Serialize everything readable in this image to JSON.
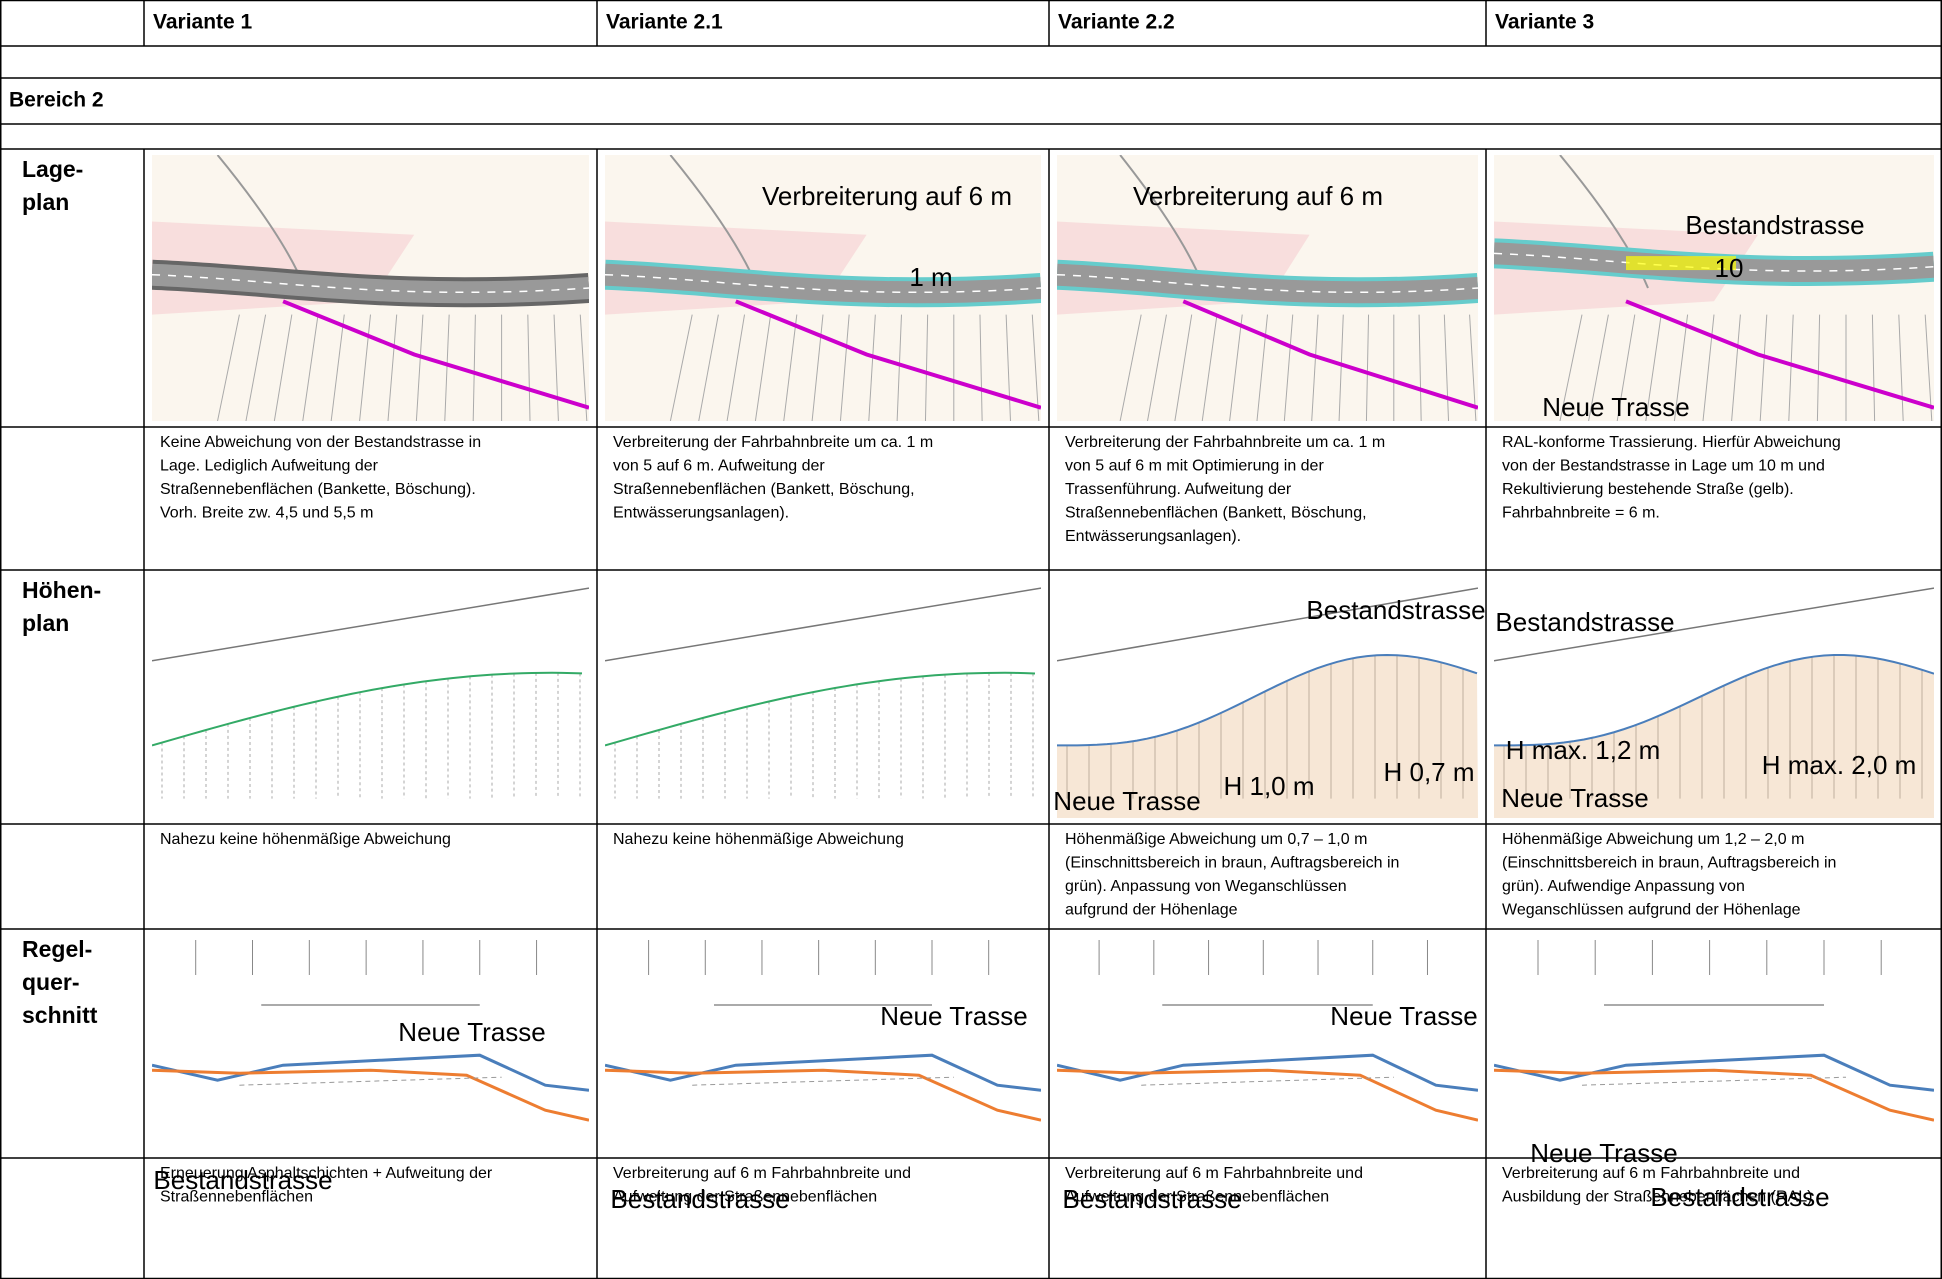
{
  "header": [
    "Variante 1",
    "Variante 2.1",
    "Variante 2.2",
    "Variante 3"
  ],
  "section": "Bereich 2",
  "rows": [
    {
      "label": [
        "Lage-",
        "plan"
      ],
      "annotations": [
        [],
        [
          {
            "text": "Verbreiterung auf 6 m",
            "color": "#4a7ebb"
          },
          {
            "text": "1 m",
            "color": "#e00000"
          }
        ],
        [
          {
            "text": "Verbreiterung auf 6 m",
            "color": "#4a7ebb"
          }
        ],
        [
          {
            "text": "Bestandstrasse",
            "color": "#ed7d31"
          },
          {
            "text": "10",
            "color": "#e00000"
          },
          {
            "text": "Neue Trasse",
            "color": "#4a7ebb"
          }
        ]
      ],
      "descriptions": [
        [
          "Keine Abweichung von der Bestandstrasse in",
          "Lage. Lediglich Aufweitung der",
          "Straßennebenflächen (Bankette, Böschung).",
          "Vorh. Breite zw. 4,5 und 5,5 m"
        ],
        [
          "Verbreiterung der Fahrbahnbreite um ca. 1 m",
          "von 5 auf 6 m.  Aufweitung der",
          "Straßennebenflächen (Bankett, Böschung,",
          "Entwässerungsanlagen)."
        ],
        [
          "Verbreiterung der Fahrbahnbreite um ca. 1 m",
          "von 5 auf 6 m  mit Optimierung in der",
          "Trassenführung. Aufweitung der",
          "Straßennebenflächen (Bankett, Böschung,",
          "Entwässerungsanlagen)."
        ],
        [
          "RAL-konforme Trassierung. Hierfür Abweichung",
          "von der Bestandstrasse in Lage um 10 m und",
          "Rekultivierung bestehende Straße (gelb).",
          "Fahrbahnbreite = 6 m."
        ]
      ]
    },
    {
      "label": [
        "Höhen-",
        "plan"
      ],
      "annotations": [
        [],
        [],
        [
          {
            "text": "Bestandstrasse",
            "color": "#ed7d31"
          },
          {
            "text": "H 1,0 m",
            "color": "#e00000"
          },
          {
            "text": "H 0,7 m",
            "color": "#e00000"
          },
          {
            "text": "Neue Trasse",
            "color": "#4a7ebb"
          }
        ],
        [
          {
            "text": "Bestandstrasse",
            "color": "#ed7d31"
          },
          {
            "text": "H max. 1,2 m",
            "color": "#e00000"
          },
          {
            "text": "H max. 2,0 m",
            "color": "#e00000"
          },
          {
            "text": "Neue Trasse",
            "color": "#4a7ebb"
          }
        ]
      ],
      "descriptions": [
        [
          "Nahezu keine höhenmäßige Abweichung"
        ],
        [
          "Nahezu keine höhenmäßige Abweichung"
        ],
        [
          "Höhenmäßige Abweichung um 0,7 – 1,0 m",
          "(Einschnittsbereich in braun, Auftragsbereich in",
          "grün). Anpassung von Weganschlüssen",
          "aufgrund der Höhenlage"
        ],
        [
          "Höhenmäßige Abweichung um 1,2 – 2,0 m",
          "(Einschnittsbereich in braun, Auftragsbereich in",
          "grün). Aufwendige Anpassung von",
          "Weganschlüssen aufgrund der Höhenlage"
        ]
      ]
    },
    {
      "label": [
        "Regel-",
        "quer-",
        "schnitt"
      ],
      "annotations": [
        [
          {
            "text": "Neue Trasse",
            "color": "#4a7ebb"
          },
          {
            "text": "Bestandstrasse",
            "color": "#ed7d31"
          }
        ],
        [
          {
            "text": "Neue Trasse",
            "color": "#4a7ebb"
          },
          {
            "text": "Bestandstrasse",
            "color": "#ed7d31"
          }
        ],
        [
          {
            "text": "Neue Trasse",
            "color": "#4a7ebb"
          },
          {
            "text": "Bestandstrasse",
            "color": "#ed7d31"
          }
        ],
        [
          {
            "text": "Neue Trasse",
            "color": "#4a7ebb"
          },
          {
            "text": "Bestandstrasse",
            "color": "#ed7d31"
          }
        ]
      ],
      "descriptions": [
        [
          "Erneuerung Asphaltschichten + Aufweitung der",
          "Straßennebenflächen"
        ],
        [
          "Verbreiterung auf 6 m Fahrbahnbreite und",
          "Aufweitung der Straßennebenflächen"
        ],
        [
          "Verbreiterung auf 6 m Fahrbahnbreite und",
          "Aufweitung der Straßennebenflächen"
        ],
        [
          "Verbreiterung auf 6 m Fahrbahnbreite und",
          "Ausbildung der Straßennebenflächen (RAL)"
        ]
      ]
    }
  ]
}
